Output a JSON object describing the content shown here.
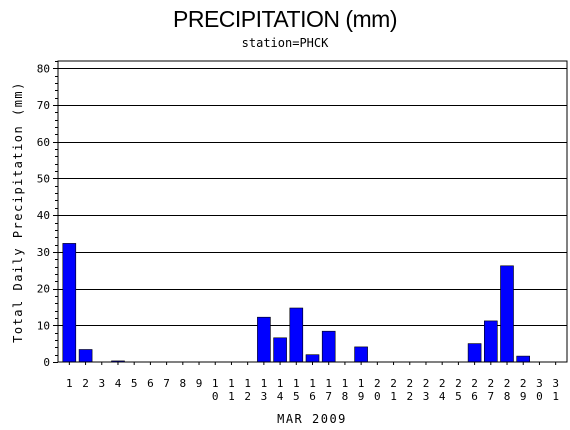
{
  "chart_data": {
    "type": "bar",
    "title": "PRECIPITATION (mm)",
    "subtitle": "station=PHCK",
    "xlabel": "MAR 2009",
    "ylabel": "Total Daily Precipitation (mm)",
    "ylim": [
      0,
      82
    ],
    "yticks": [
      0,
      10,
      20,
      30,
      40,
      50,
      60,
      70,
      80
    ],
    "grid": true,
    "bar_color": "#0000ff",
    "categories": [
      "1",
      "2",
      "3",
      "4",
      "5",
      "6",
      "7",
      "8",
      "9",
      "10",
      "11",
      "12",
      "13",
      "14",
      "15",
      "16",
      "17",
      "18",
      "19",
      "20",
      "21",
      "22",
      "23",
      "24",
      "25",
      "26",
      "27",
      "28",
      "29",
      "30",
      "31"
    ],
    "values": [
      32.3,
      3.4,
      0,
      0.3,
      0,
      0,
      0,
      0,
      0,
      0,
      0,
      0,
      12.2,
      6.6,
      14.7,
      2.0,
      8.4,
      0,
      4.1,
      0,
      0,
      0,
      0,
      0,
      0,
      5.0,
      11.2,
      26.2,
      1.6,
      0,
      0
    ]
  }
}
